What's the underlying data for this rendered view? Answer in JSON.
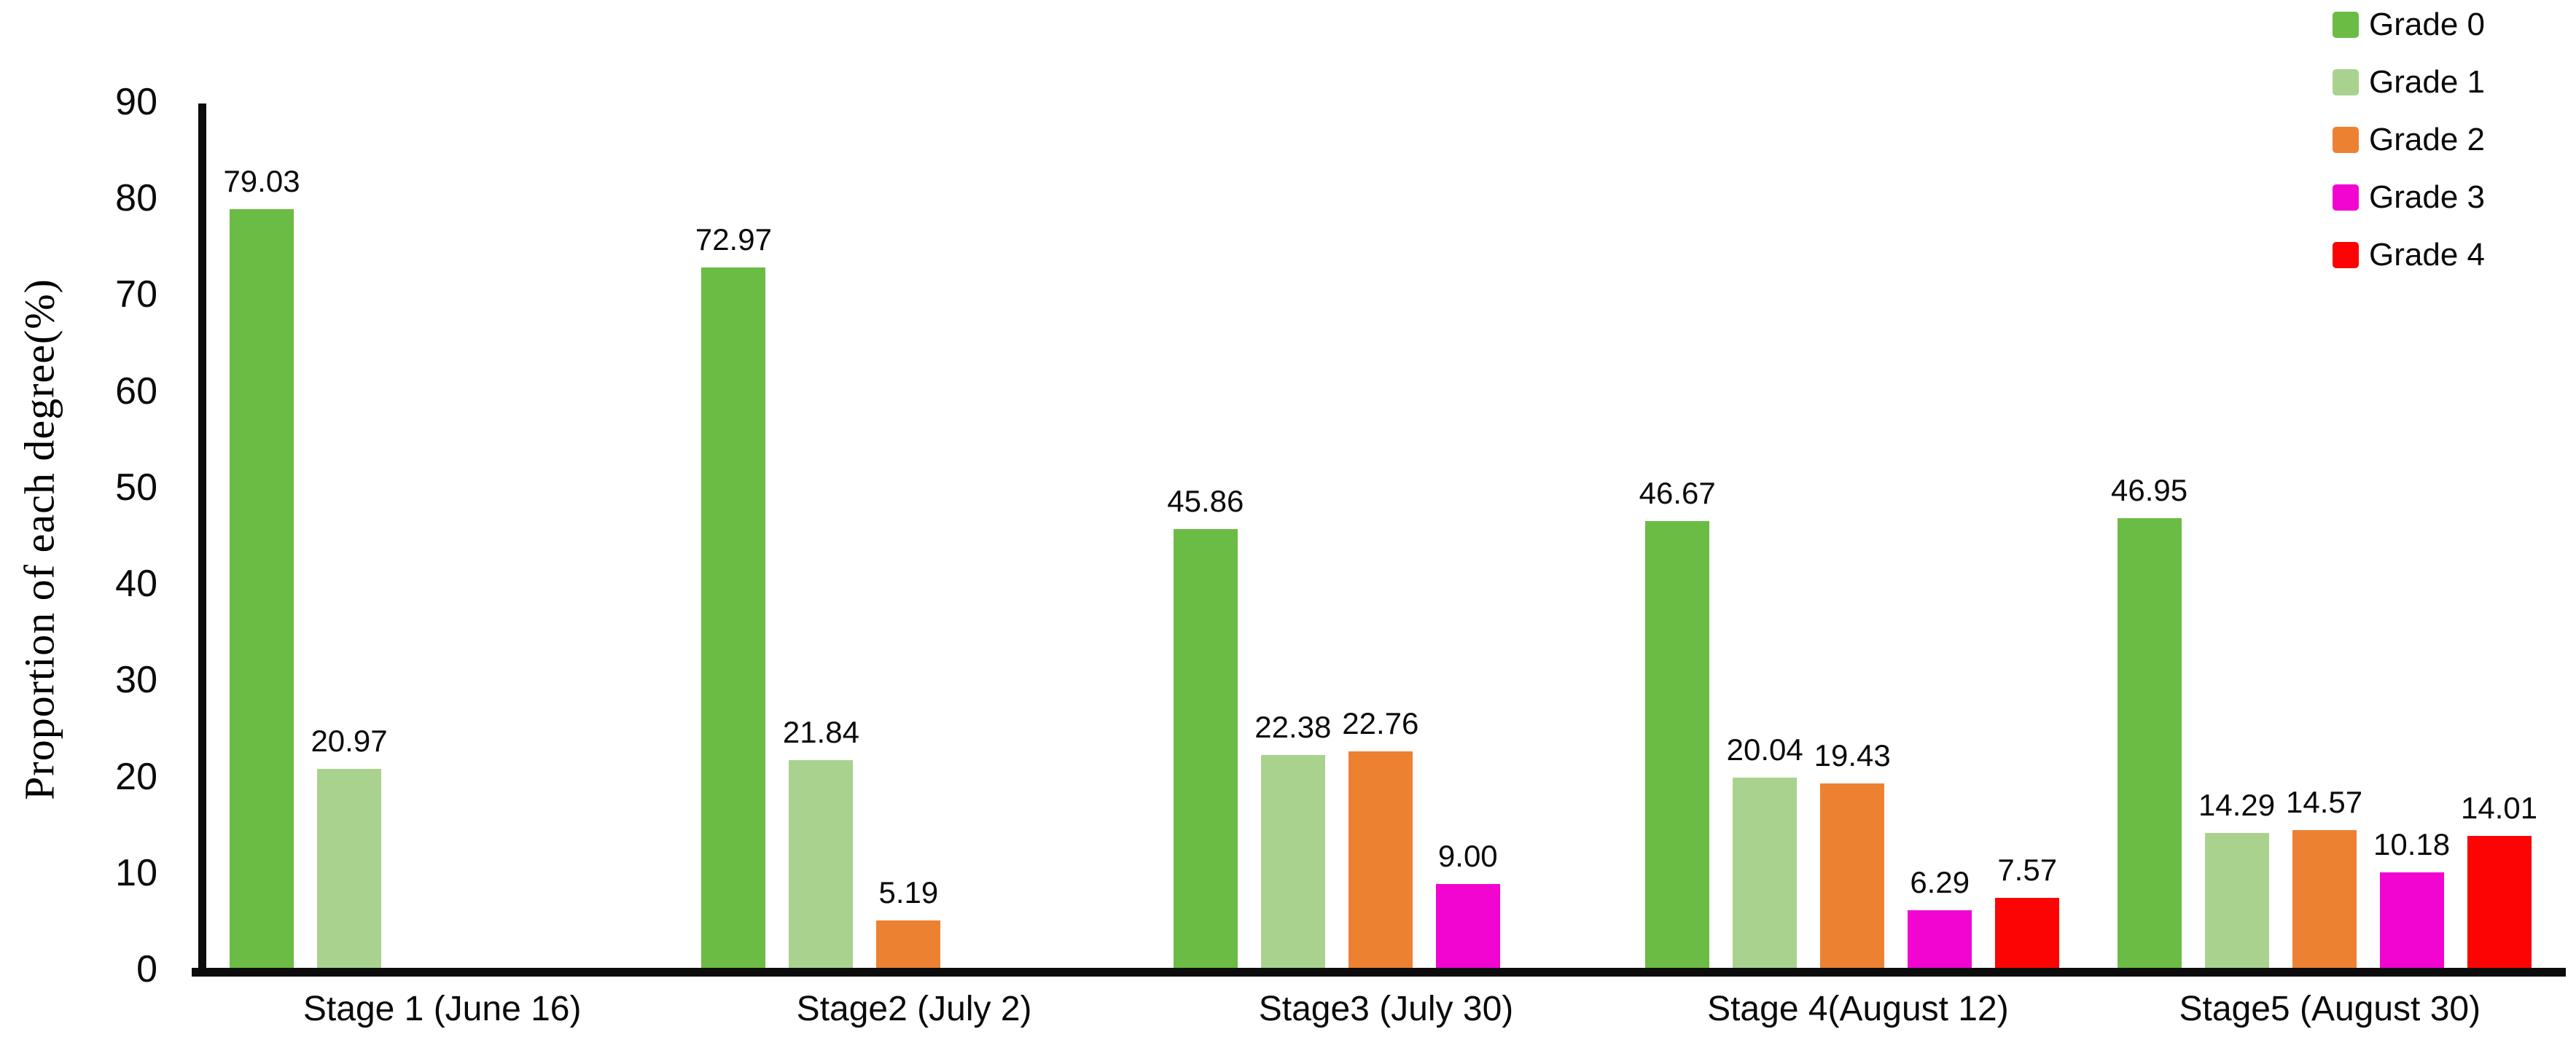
{
  "chart_data": {
    "type": "bar",
    "title": "",
    "xlabel": "",
    "ylabel": "Proportion of each degree(%)",
    "ylim": [
      0,
      90
    ],
    "yticks": [
      0,
      10,
      20,
      30,
      40,
      50,
      60,
      70,
      80,
      90
    ],
    "grid": false,
    "legend_position": "top-right",
    "value_label_decimals": 2,
    "categories": [
      "Stage 1 (June 16)",
      "Stage2 (July 2)",
      "Stage3 (July 30)",
      "Stage 4(August 12)",
      "Stage5 (August 30)"
    ],
    "series": [
      {
        "name": "Grade 0",
        "color": "#6BBC44",
        "values": [
          79.03,
          72.97,
          45.86,
          46.67,
          46.95
        ]
      },
      {
        "name": "Grade 1",
        "color": "#A9D28E",
        "values": [
          20.97,
          21.84,
          22.38,
          20.04,
          14.29
        ]
      },
      {
        "name": "Grade 2",
        "color": "#ED8132",
        "values": [
          null,
          5.19,
          22.76,
          19.43,
          14.57
        ]
      },
      {
        "name": "Grade 3",
        "color": "#F205D1",
        "values": [
          null,
          null,
          9.0,
          6.29,
          10.18
        ]
      },
      {
        "name": "Grade 4",
        "color": "#FC0404",
        "values": [
          null,
          null,
          null,
          7.57,
          14.01
        ]
      }
    ]
  }
}
